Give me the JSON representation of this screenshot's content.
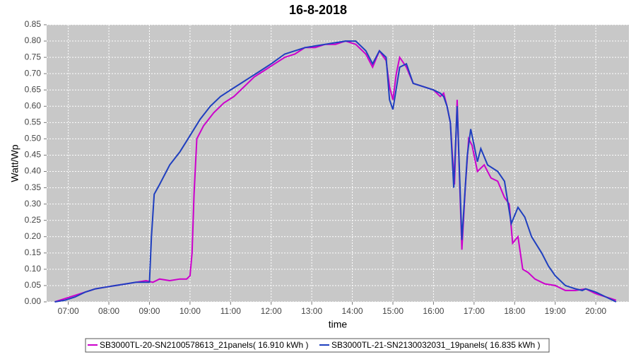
{
  "chart_data": {
    "type": "line",
    "title": "16-8-2018",
    "x_label": "time",
    "y_label": "Watt/Wp",
    "xlim": [
      "06:28",
      "20:49"
    ],
    "xticks": [
      "07:00",
      "08:00",
      "09:00",
      "10:00",
      "11:00",
      "12:00",
      "13:00",
      "14:00",
      "15:00",
      "16:00",
      "17:00",
      "18:00",
      "19:00",
      "20:00"
    ],
    "ylim": [
      0,
      0.85
    ],
    "yticks": [
      {
        "value": 0,
        "label": "0.00"
      },
      {
        "value": 0.05,
        "label": "0.05"
      },
      {
        "value": 0.1,
        "label": "0.10"
      },
      {
        "value": 0.15,
        "label": "0.15"
      },
      {
        "value": 0.2,
        "label": "0.20"
      },
      {
        "value": 0.25,
        "label": "0.25"
      },
      {
        "value": 0.3,
        "label": "0.30"
      },
      {
        "value": 0.35,
        "label": "0.35"
      },
      {
        "value": 0.4,
        "label": "0.40"
      },
      {
        "value": 0.45,
        "label": "0.45"
      },
      {
        "value": 0.5,
        "label": "0.50"
      },
      {
        "value": 0.55,
        "label": "0.55"
      },
      {
        "value": 0.6,
        "label": "0.60"
      },
      {
        "value": 0.65,
        "label": "0.65"
      },
      {
        "value": 0.7,
        "label": "0.70"
      },
      {
        "value": 0.75,
        "label": "0.75"
      },
      {
        "value": 0.8,
        "label": "0.80"
      },
      {
        "value": 0.85,
        "label": "0.85"
      }
    ],
    "grid": true,
    "legend": "bottom",
    "series": [
      {
        "name": "SB3000TL-20-SN2100578613_21panels( 16.910 kWh )",
        "color": "#cc00cc",
        "x": [
          "06:40",
          "06:55",
          "07:10",
          "07:25",
          "07:40",
          "07:55",
          "08:10",
          "08:25",
          "08:40",
          "08:55",
          "09:05",
          "09:15",
          "09:30",
          "09:45",
          "09:55",
          "10:00",
          "10:03",
          "10:06",
          "10:10",
          "10:20",
          "10:35",
          "10:50",
          "11:05",
          "11:20",
          "11:35",
          "11:50",
          "12:05",
          "12:20",
          "12:35",
          "12:50",
          "13:05",
          "13:20",
          "13:35",
          "13:50",
          "14:05",
          "14:20",
          "14:30",
          "14:40",
          "14:50",
          "14:55",
          "15:00",
          "15:05",
          "15:10",
          "15:20",
          "15:30",
          "15:45",
          "16:00",
          "16:10",
          "16:15",
          "16:20",
          "16:25",
          "16:28",
          "16:31",
          "16:35",
          "16:39",
          "16:42",
          "16:47",
          "16:52",
          "16:57",
          "17:05",
          "17:15",
          "17:25",
          "17:35",
          "17:45",
          "17:52",
          "17:57",
          "18:05",
          "18:12",
          "18:20",
          "18:30",
          "18:45",
          "19:00",
          "19:15",
          "19:30",
          "19:45",
          "20:00",
          "20:15",
          "20:30"
        ],
        "values": [
          0,
          0.01,
          0.02,
          0.03,
          0.04,
          0.045,
          0.05,
          0.055,
          0.06,
          0.065,
          0.06,
          0.07,
          0.065,
          0.07,
          0.07,
          0.08,
          0.15,
          0.33,
          0.5,
          0.54,
          0.58,
          0.61,
          0.63,
          0.66,
          0.69,
          0.71,
          0.73,
          0.75,
          0.76,
          0.78,
          0.78,
          0.79,
          0.79,
          0.8,
          0.79,
          0.76,
          0.72,
          0.77,
          0.74,
          0.66,
          0.62,
          0.7,
          0.75,
          0.72,
          0.67,
          0.66,
          0.65,
          0.63,
          0.64,
          0.6,
          0.55,
          0.45,
          0.36,
          0.62,
          0.35,
          0.16,
          0.35,
          0.5,
          0.48,
          0.4,
          0.42,
          0.38,
          0.37,
          0.32,
          0.3,
          0.18,
          0.2,
          0.1,
          0.09,
          0.07,
          0.055,
          0.05,
          0.035,
          0.035,
          0.04,
          0.025,
          0.015,
          0.005
        ]
      },
      {
        "name": "SB3000TL-21-SN2130032031_19panels( 16.835 kWh )",
        "color": "#1f3fbf",
        "x": [
          "06:40",
          "06:55",
          "07:10",
          "07:25",
          "07:40",
          "07:55",
          "08:10",
          "08:25",
          "08:40",
          "08:55",
          "09:00",
          "09:03",
          "09:07",
          "09:15",
          "09:30",
          "09:45",
          "10:00",
          "10:15",
          "10:30",
          "10:45",
          "11:00",
          "11:15",
          "11:30",
          "11:45",
          "12:00",
          "12:20",
          "12:35",
          "12:50",
          "13:05",
          "13:20",
          "13:35",
          "13:50",
          "14:05",
          "14:20",
          "14:30",
          "14:40",
          "14:50",
          "14:55",
          "15:00",
          "15:10",
          "15:20",
          "15:30",
          "15:45",
          "16:00",
          "16:10",
          "16:15",
          "16:20",
          "16:25",
          "16:30",
          "16:35",
          "16:42",
          "16:50",
          "16:55",
          "17:05",
          "17:10",
          "17:20",
          "17:35",
          "17:45",
          "17:55",
          "18:05",
          "18:15",
          "18:25",
          "18:40",
          "18:50",
          "19:00",
          "19:15",
          "19:30",
          "19:40",
          "19:45",
          "20:00",
          "20:15",
          "20:30"
        ],
        "values": [
          0,
          0.005,
          0.015,
          0.03,
          0.04,
          0.045,
          0.05,
          0.055,
          0.06,
          0.06,
          0.06,
          0.2,
          0.33,
          0.36,
          0.42,
          0.46,
          0.51,
          0.56,
          0.6,
          0.63,
          0.65,
          0.67,
          0.69,
          0.71,
          0.73,
          0.76,
          0.77,
          0.78,
          0.785,
          0.79,
          0.795,
          0.8,
          0.8,
          0.77,
          0.73,
          0.77,
          0.75,
          0.62,
          0.59,
          0.72,
          0.73,
          0.67,
          0.66,
          0.65,
          0.64,
          0.63,
          0.6,
          0.55,
          0.35,
          0.6,
          0.19,
          0.45,
          0.53,
          0.43,
          0.47,
          0.42,
          0.4,
          0.37,
          0.24,
          0.29,
          0.26,
          0.2,
          0.15,
          0.11,
          0.08,
          0.05,
          0.04,
          0.035,
          0.04,
          0.03,
          0.015,
          0
        ]
      }
    ]
  }
}
